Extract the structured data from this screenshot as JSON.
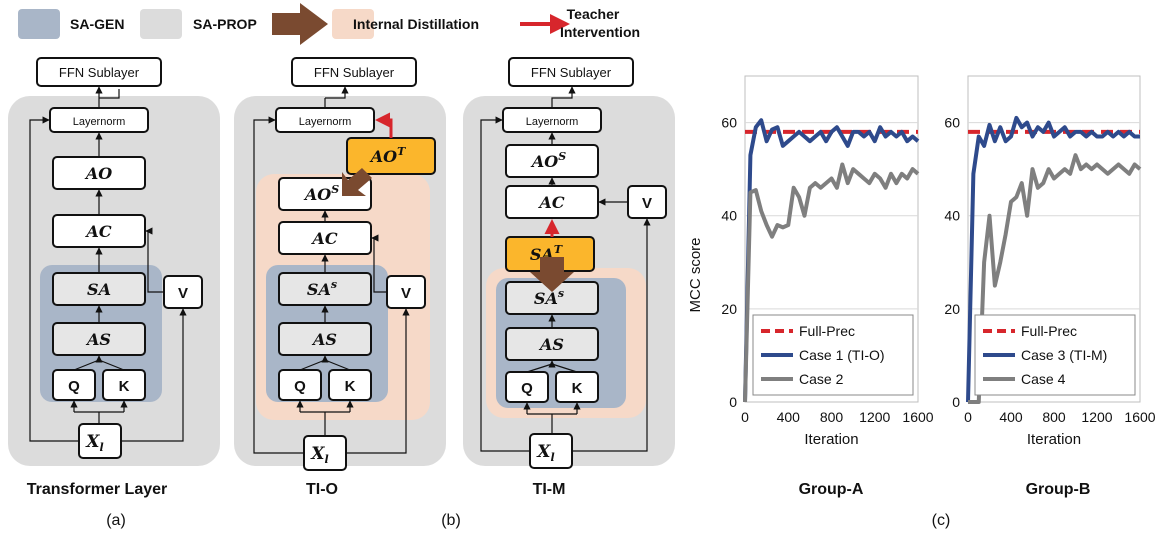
{
  "legend": {
    "sa_gen": "SA-GEN",
    "sa_prop": "SA-PROP",
    "internal_distillation": "Internal Distillation",
    "teacher_intervention_line1": "Teacher",
    "teacher_intervention_line2": "Intervention",
    "colors": {
      "sa_gen": "#a9b6c8",
      "sa_prop": "#dcdcdc",
      "distill_bg": "#f6d9c8",
      "distill_arrow": "#7a4a30",
      "teacher_arrow": "#d7262c",
      "teacher_box": "#fbb62c"
    }
  },
  "panels": {
    "a_title": "Transformer Layer",
    "b1_title": "TI-O",
    "b2_title": "TI-M",
    "group_a_title": "Group-A",
    "group_b_title": "Group-B",
    "sub_a": "(a)",
    "sub_b": "(b)",
    "sub_c": "(c)"
  },
  "blocks": {
    "ffn": "FFN Sublayer",
    "layernorm": "Layernorm",
    "ao": "AO",
    "ac": "AC",
    "sa": "SA",
    "as": "AS",
    "q": "Q",
    "k": "K",
    "v": "V",
    "x": "X",
    "x_sub": "l",
    "sup_s": "S",
    "sup_s_lower": "s",
    "sup_t": "T"
  },
  "chart_data": [
    {
      "type": "line",
      "title": "Group-A",
      "xlabel": "Iteration",
      "ylabel": "MCC score",
      "xlim": [
        0,
        1600
      ],
      "ylim": [
        0,
        70
      ],
      "xticks": [
        "0",
        "400",
        "800",
        "1200",
        "1600"
      ],
      "yticks": [
        "0",
        "20",
        "40",
        "60"
      ],
      "legend_position": "bottom-right",
      "series": [
        {
          "name": "Full-Prec",
          "style": "dashed",
          "color": "#d7262c",
          "x": [
            0,
            1600
          ],
          "y": [
            58,
            58
          ]
        },
        {
          "name": "Case 1 (TI-O)",
          "color": "#2e4a8c",
          "x": [
            0,
            50,
            100,
            150,
            200,
            250,
            300,
            350,
            400,
            450,
            500,
            550,
            600,
            650,
            700,
            750,
            800,
            850,
            900,
            950,
            1000,
            1050,
            1100,
            1150,
            1200,
            1250,
            1300,
            1350,
            1400,
            1450,
            1500,
            1550,
            1600
          ],
          "y": [
            0,
            53,
            59,
            60.5,
            56,
            58.5,
            59,
            55,
            56,
            57,
            58,
            57,
            56,
            57,
            58,
            56,
            58,
            59,
            57,
            55,
            58,
            58,
            57,
            58,
            56,
            59,
            57,
            58,
            57,
            58,
            56,
            57,
            56
          ]
        },
        {
          "name": "Case 2",
          "color": "#7f7f7f",
          "x": [
            0,
            50,
            100,
            150,
            200,
            250,
            300,
            350,
            400,
            450,
            500,
            550,
            600,
            650,
            700,
            750,
            800,
            850,
            900,
            950,
            1000,
            1050,
            1100,
            1150,
            1200,
            1250,
            1300,
            1350,
            1400,
            1450,
            1500,
            1550,
            1600
          ],
          "y": [
            0,
            45,
            45.5,
            41,
            38,
            35.5,
            38,
            37.5,
            38,
            46,
            44,
            40,
            46,
            47,
            46,
            47,
            48,
            46,
            51,
            47,
            50,
            49,
            48,
            47,
            49,
            48,
            46,
            49,
            47,
            49,
            48,
            50,
            49
          ]
        }
      ]
    },
    {
      "type": "line",
      "title": "Group-B",
      "xlabel": "Iteration",
      "ylabel": "",
      "xlim": [
        0,
        1600
      ],
      "ylim": [
        0,
        70
      ],
      "xticks": [
        "0",
        "400",
        "800",
        "1200",
        "1600"
      ],
      "yticks": [
        "0",
        "20",
        "40",
        "60"
      ],
      "legend_position": "bottom-right",
      "series": [
        {
          "name": "Full-Prec",
          "style": "dashed",
          "color": "#d7262c",
          "x": [
            0,
            1600
          ],
          "y": [
            58,
            58
          ]
        },
        {
          "name": "Case 3 (TI-M)",
          "color": "#2e4a8c",
          "x": [
            0,
            50,
            100,
            150,
            200,
            250,
            300,
            350,
            400,
            450,
            500,
            550,
            600,
            650,
            700,
            750,
            800,
            850,
            900,
            950,
            1000,
            1050,
            1100,
            1150,
            1200,
            1250,
            1300,
            1350,
            1400,
            1450,
            1500,
            1550,
            1600
          ],
          "y": [
            0,
            49,
            57,
            55,
            59.5,
            56,
            59,
            56,
            57,
            61,
            59,
            60,
            57,
            59,
            58,
            60,
            57,
            58,
            59,
            57,
            58,
            58,
            57,
            58,
            57,
            57,
            58,
            57,
            58,
            57,
            58,
            57,
            57
          ]
        },
        {
          "name": "Case 4",
          "color": "#7f7f7f",
          "x": [
            0,
            50,
            100,
            150,
            200,
            250,
            300,
            350,
            400,
            450,
            500,
            550,
            600,
            650,
            700,
            750,
            800,
            850,
            900,
            950,
            1000,
            1050,
            1100,
            1150,
            1200,
            1250,
            1300,
            1350,
            1400,
            1450,
            1500,
            1550,
            1600
          ],
          "y": [
            0,
            0,
            0,
            30,
            40,
            25,
            30,
            36,
            43,
            44,
            47,
            40,
            50,
            46,
            47,
            50,
            48,
            49,
            50,
            49,
            53,
            50,
            51,
            50,
            51,
            50,
            49,
            50,
            51,
            50,
            49,
            51,
            50
          ]
        }
      ]
    }
  ]
}
